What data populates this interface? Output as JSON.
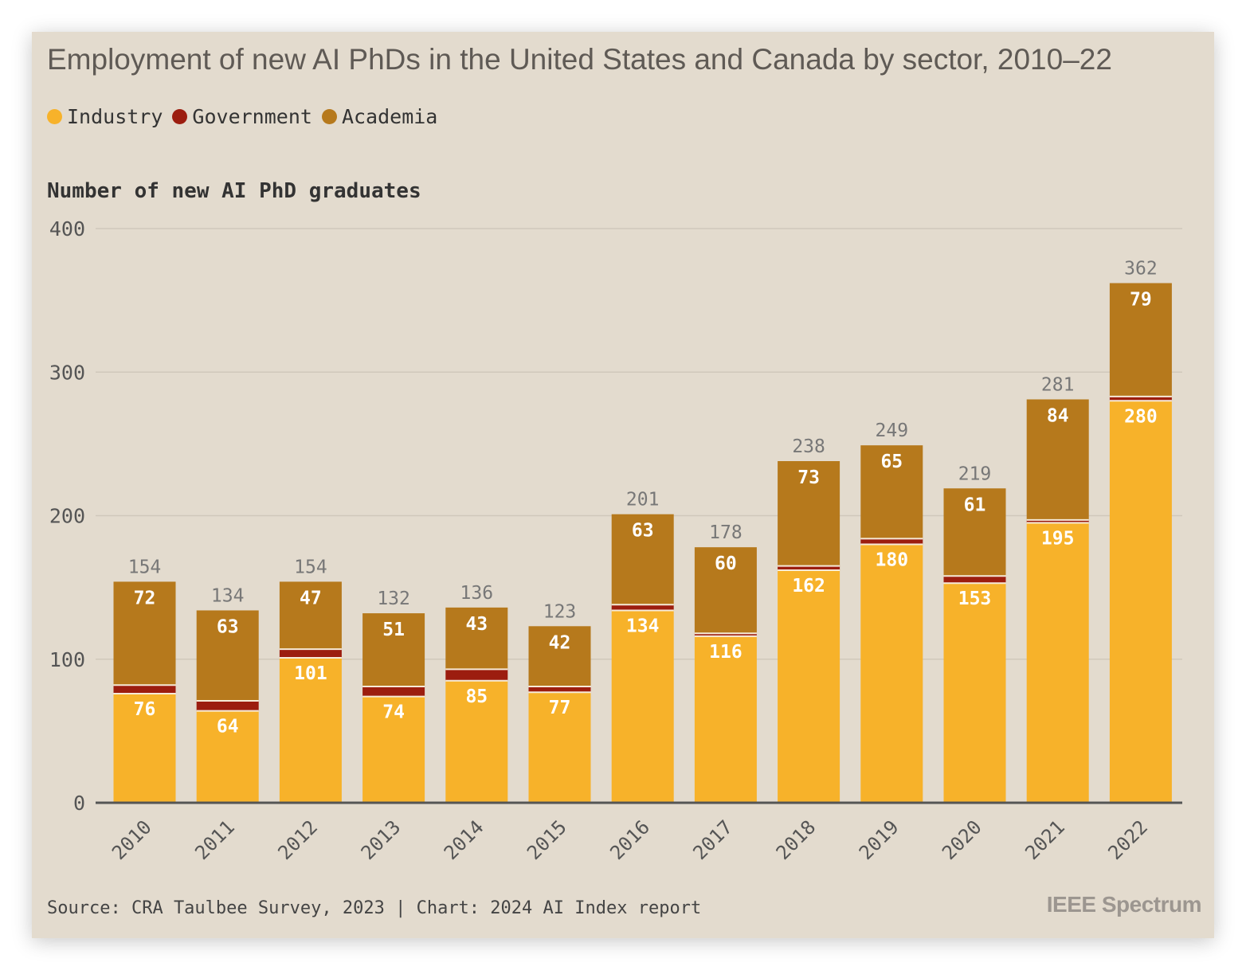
{
  "header": {
    "title": "Employment of new AI PhDs in the United States and Canada by sector, 2010–22"
  },
  "legend": [
    {
      "label": "Industry",
      "color": "#f7b22a"
    },
    {
      "label": "Government",
      "color": "#9c1d0f"
    },
    {
      "label": "Academia",
      "color": "#b6791c"
    }
  ],
  "footer": {
    "source": "Source: CRA Taulbee Survey, 2023 | Chart: 2024 AI Index report",
    "brand": "IEEE Spectrum"
  },
  "chart_data": {
    "type": "bar",
    "stacked": true,
    "title": "Employment of new AI PhDs in the United States and Canada by sector, 2010–22",
    "ylabel": "Number of new AI PhD graduates",
    "xlabel": "",
    "ylim": [
      0,
      400
    ],
    "yticks": [
      0,
      100,
      200,
      300,
      400
    ],
    "grid": true,
    "legend_position": "top-left",
    "categories": [
      "2010",
      "2011",
      "2012",
      "2013",
      "2014",
      "2015",
      "2016",
      "2017",
      "2018",
      "2019",
      "2020",
      "2021",
      "2022"
    ],
    "series": [
      {
        "name": "Industry",
        "color": "#f7b22a",
        "values": [
          76,
          64,
          101,
          74,
          85,
          77,
          134,
          116,
          162,
          180,
          153,
          195,
          280
        ]
      },
      {
        "name": "Government",
        "color": "#9c1d0f",
        "values": [
          6,
          7,
          6,
          7,
          8,
          4,
          4,
          2,
          3,
          4,
          5,
          2,
          3
        ]
      },
      {
        "name": "Academia",
        "color": "#b6791c",
        "values": [
          72,
          63,
          47,
          51,
          43,
          42,
          63,
          60,
          73,
          65,
          61,
          84,
          79
        ]
      }
    ],
    "totals": [
      154,
      134,
      154,
      132,
      136,
      123,
      201,
      178,
      238,
      249,
      219,
      281,
      362
    ]
  }
}
